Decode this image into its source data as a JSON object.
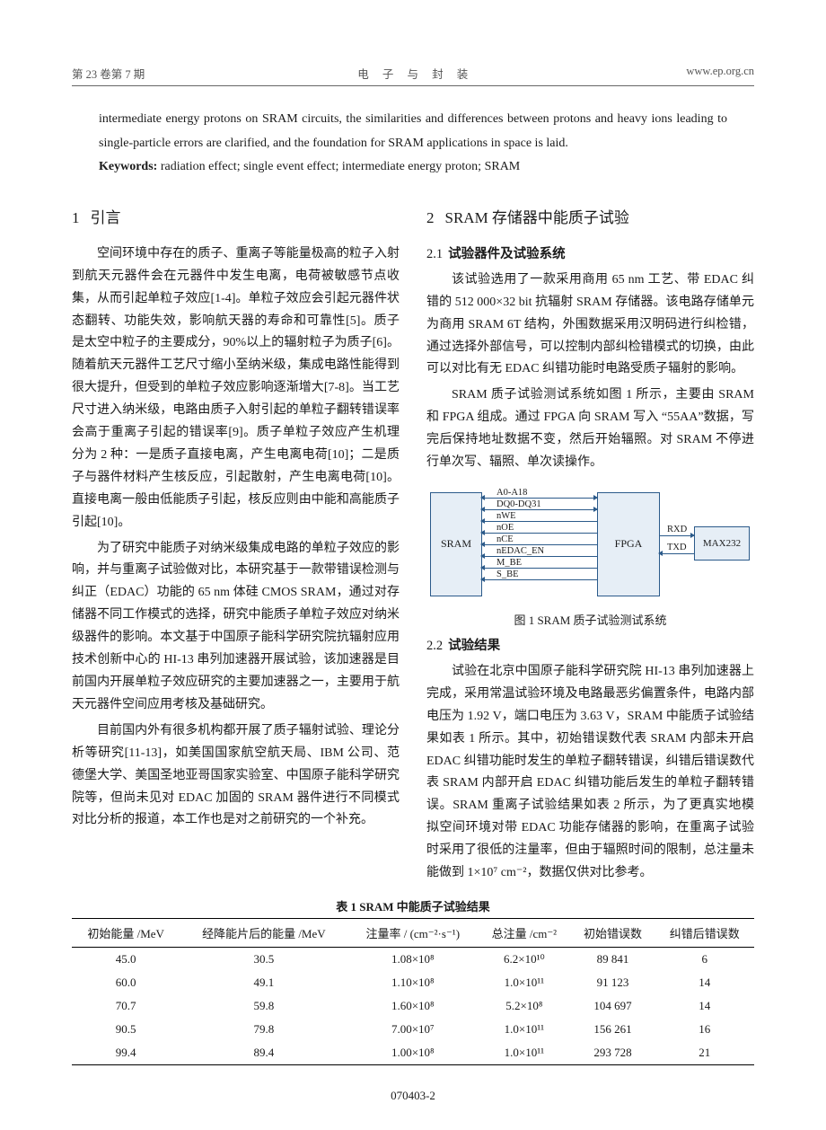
{
  "header": {
    "left": "第 23 卷第 7 期",
    "center": "电  子  与  封  装",
    "right": "www.ep.org.cn"
  },
  "abstract": {
    "line1": "intermediate energy protons on SRAM circuits, the similarities and differences between protons and heavy ions leading to single-particle errors are clarified, and the foundation for SRAM applications in space is laid.",
    "kw_label": "Keywords:",
    "kw_text": " radiation effect; single event effect; intermediate energy proton; SRAM"
  },
  "sec1": {
    "title_num": "1",
    "title": "引言",
    "p1": "空间环境中存在的质子、重离子等能量极高的粒子入射到航天元器件会在元器件中发生电离，电荷被敏感节点收集，从而引起单粒子效应[1-4]。单粒子效应会引起元器件状态翻转、功能失效，影响航天器的寿命和可靠性[5]。质子是太空中粒子的主要成分，90%以上的辐射粒子为质子[6]。随着航天元器件工艺尺寸缩小至纳米级，集成电路性能得到很大提升，但受到的单粒子效应影响逐渐增大[7-8]。当工艺尺寸进入纳米级，电路由质子入射引起的单粒子翻转错误率会高于重离子引起的错误率[9]。质子单粒子效应产生机理分为 2 种：一是质子直接电离，产生电离电荷[10]；二是质子与器件材料产生核反应，引起散射，产生电离电荷[10]。直接电离一般由低能质子引起，核反应则由中能和高能质子引起[10]。",
    "p2": "为了研究中能质子对纳米级集成电路的单粒子效应的影响，并与重离子试验做对比，本研究基于一款带错误检测与纠正（EDAC）功能的 65 nm 体硅 CMOS SRAM，通过对存储器不同工作模式的选择，研究中能质子单粒子效应对纳米级器件的影响。本文基于中国原子能科学研究院抗辐射应用技术创新中心的 HI-13 串列加速器开展试验，该加速器是目前国内开展单粒子效应研究的主要加速器之一，主要用于航天元器件空间应用考核及基础研究。",
    "p3": "目前国内外有很多机构都开展了质子辐射试验、理论分析等研究[11-13]，如美国国家航空航天局、IBM 公司、范德堡大学、美国圣地亚哥国家实验室、中国原子能科学研究院等，但尚未见对 EDAC 加固的 SRAM 器件进行不同模式对比分析的报道，本工作也是对之前研究的一个补充。"
  },
  "sec2": {
    "title_num": "2",
    "title": "SRAM 存储器中能质子试验",
    "s21_num": "2.1",
    "s21_title": "试验器件及试验系统",
    "p21a": "该试验选用了一款采用商用 65 nm 工艺、带 EDAC 纠错的 512 000×32 bit 抗辐射 SRAM 存储器。该电路存储单元为商用 SRAM 6T 结构，外围数据采用汉明码进行纠检错，通过选择外部信号，可以控制内部纠检错模式的切换，由此可以对比有无 EDAC 纠错功能时电路受质子辐射的影响。",
    "p21b": "SRAM 质子试验测试系统如图 1 所示，主要由 SRAM 和 FPGA 组成。通过 FPGA 向 SRAM 写入 “55AA”数据，写完后保持地址数据不变，然后开始辐照。对 SRAM 不停进行单次写、辐照、单次读操作。",
    "fig1_caption": "图 1  SRAM 质子试验测试系统",
    "s22_num": "2.2",
    "s22_title": "试验结果",
    "p22": "试验在北京中国原子能科学研究院 HI-13 串列加速器上完成，采用常温试验环境及电路最恶劣偏置条件，电路内部电压为 1.92 V，端口电压为 3.63 V，SRAM 中能质子试验结果如表 1 所示。其中，初始错误数代表 SRAM 内部未开启 EDAC 纠错功能时发生的单粒子翻转错误，纠错后错误数代表 SRAM 内部开启 EDAC 纠错功能后发生的单粒子翻转错误。SRAM 重离子试验结果如表 2 所示，为了更真实地模拟空间环境对带 EDAC 功能存储器的影响，在重离子试验时采用了很低的注量率，但由于辐照时间的限制，总注量未能做到 1×10⁷ cm⁻²，数据仅供对比参考。"
  },
  "diagram": {
    "bg": "#e6eef6",
    "border": "#2b5a8a",
    "sram": "SRAM",
    "fpga": "FPGA",
    "max232": "MAX232",
    "rxd": "RXD",
    "txd": "TXD",
    "signals": [
      "A0-A18",
      "DQ0-DQ31",
      "nWE",
      "nOE",
      "nCE",
      "nEDAC_EN",
      "M_BE",
      "S_BE"
    ]
  },
  "table1": {
    "caption": "表 1  SRAM 中能质子试验结果",
    "columns": [
      "初始能量 /MeV",
      "经降能片后的能量 /MeV",
      "注量率 / (cm⁻²·s⁻¹)",
      "总注量 /cm⁻²",
      "初始错误数",
      "纠错后错误数"
    ],
    "rows": [
      [
        "45.0",
        "30.5",
        "1.08×10⁸",
        "6.2×10¹⁰",
        "89 841",
        "6"
      ],
      [
        "60.0",
        "49.1",
        "1.10×10⁸",
        "1.0×10¹¹",
        "91 123",
        "14"
      ],
      [
        "70.7",
        "59.8",
        "1.60×10⁸",
        "5.2×10⁸",
        "104 697",
        "14"
      ],
      [
        "90.5",
        "79.8",
        "7.00×10⁷",
        "1.0×10¹¹",
        "156 261",
        "16"
      ],
      [
        "99.4",
        "89.4",
        "1.00×10⁸",
        "1.0×10¹¹",
        "293 728",
        "21"
      ]
    ]
  },
  "footer": "070403-2"
}
